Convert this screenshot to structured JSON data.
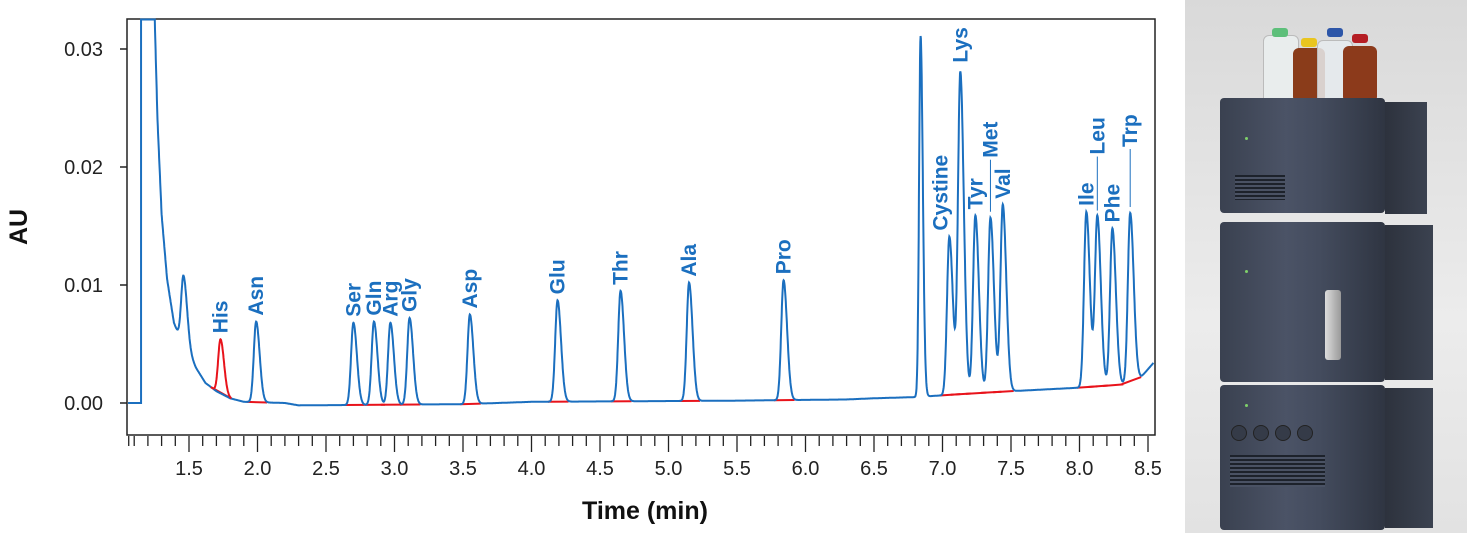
{
  "chart_data": {
    "type": "line",
    "title": "",
    "xlabel": "Time (min)",
    "ylabel": "AU",
    "xlim": [
      1.055,
      8.54
    ],
    "ylim": [
      0.0,
      0.0325
    ],
    "x_ticks": [
      "1.5",
      "2.0",
      "2.5",
      "3.0",
      "3.5",
      "4.0",
      "4.5",
      "5.0",
      "5.5",
      "6.0",
      "6.5",
      "7.0",
      "7.5",
      "8.0",
      "8.5"
    ],
    "y_ticks": [
      "0.00",
      "0.01",
      "0.02",
      "0.03"
    ],
    "grid": false,
    "trace_color": "#1b6fbf",
    "integration_color": "#e8131b",
    "solvent_front": {
      "start": 1.15,
      "end": 1.25
    },
    "baseline": [
      [
        1.055,
        0
      ],
      [
        1.15,
        0
      ],
      [
        1.25,
        0.0325
      ],
      [
        1.27,
        0.024
      ],
      [
        1.3,
        0.016
      ],
      [
        1.34,
        0.0105
      ],
      [
        1.39,
        0.0068
      ],
      [
        1.43,
        0.0056
      ],
      [
        1.5,
        0.0043
      ],
      [
        1.55,
        0.003
      ],
      [
        1.62,
        0.0017
      ],
      [
        1.7,
        0.001
      ],
      [
        1.8,
        0.0004
      ],
      [
        1.9,
        0.0001
      ],
      [
        2.2,
        0.0
      ],
      [
        2.3,
        -0.0002
      ],
      [
        3.5,
        -0.0001
      ],
      [
        4.0,
        0.0001
      ],
      [
        5.5,
        0.0002
      ],
      [
        6.3,
        0.0003
      ],
      [
        6.5,
        0.0004
      ],
      [
        6.8,
        0.0005
      ],
      [
        7.2,
        0.0008
      ],
      [
        7.5,
        0.001
      ],
      [
        8.0,
        0.0013
      ],
      [
        8.35,
        0.0016
      ],
      [
        8.45,
        0.0022
      ],
      [
        8.54,
        0.0034
      ]
    ],
    "peaks": [
      {
        "label": "",
        "time": 1.46,
        "height": 0.0108
      },
      {
        "label": "His",
        "time": 1.73,
        "height": 0.0054,
        "highlight": true
      },
      {
        "label": "Asn",
        "time": 1.99,
        "height": 0.0069
      },
      {
        "label": "Ser",
        "time": 2.7,
        "height": 0.0068
      },
      {
        "label": "Gln",
        "time": 2.85,
        "height": 0.0069
      },
      {
        "label": "Arg",
        "time": 2.97,
        "height": 0.0068
      },
      {
        "label": "Gly",
        "time": 3.11,
        "height": 0.0072
      },
      {
        "label": "Asp",
        "time": 3.55,
        "height": 0.0075
      },
      {
        "label": "Glu",
        "time": 4.19,
        "height": 0.0087
      },
      {
        "label": "Thr",
        "time": 4.65,
        "height": 0.0095
      },
      {
        "label": "Ala",
        "time": 5.15,
        "height": 0.0102
      },
      {
        "label": "Pro",
        "time": 5.84,
        "height": 0.0104
      },
      {
        "label": "",
        "time": 6.84,
        "height": 0.0311
      },
      {
        "label": "Cystine",
        "time": 7.05,
        "height": 0.0141
      },
      {
        "label": "Lys",
        "time": 7.13,
        "height": 0.028
      },
      {
        "label": "Tyr",
        "time": 7.24,
        "height": 0.0159
      },
      {
        "label": "Met",
        "time": 7.35,
        "height": 0.0157
      },
      {
        "label": "Val",
        "time": 7.44,
        "height": 0.0168
      },
      {
        "label": "Ile",
        "time": 8.05,
        "height": 0.0162
      },
      {
        "label": "Leu",
        "time": 8.13,
        "height": 0.0158
      },
      {
        "label": "Phe",
        "time": 8.24,
        "height": 0.0148
      },
      {
        "label": "Trp",
        "time": 8.37,
        "height": 0.0161
      }
    ]
  }
}
